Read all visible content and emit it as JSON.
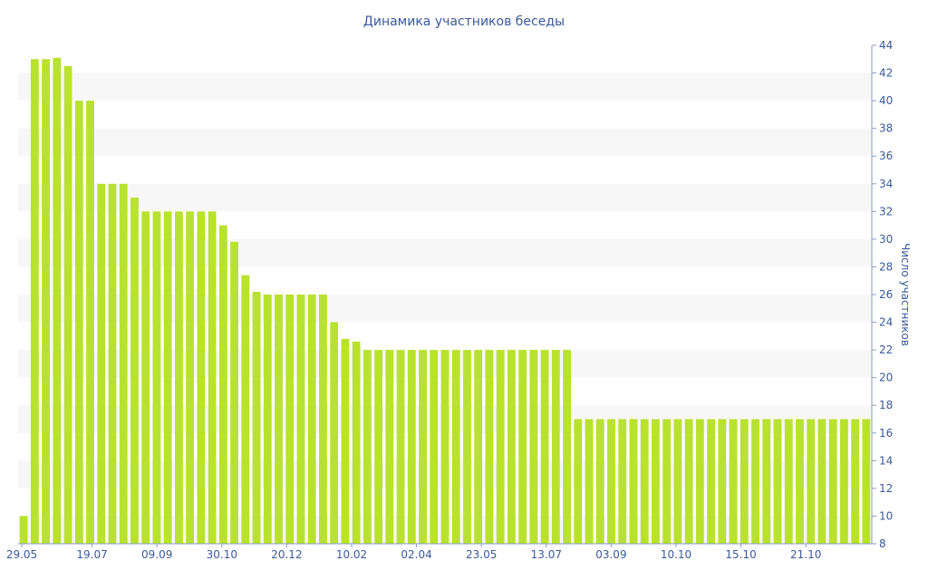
{
  "chart_data": {
    "type": "bar",
    "title": "Динамика участников беседы",
    "xlabel": "",
    "ylabel": "Число участников",
    "ylim": [
      8,
      44
    ],
    "y_axis_position": "right",
    "y_ticks": [
      8,
      10,
      12,
      14,
      16,
      18,
      20,
      22,
      24,
      26,
      28,
      30,
      32,
      34,
      36,
      38,
      40,
      42,
      44
    ],
    "x_tick_labels": [
      "29.05",
      "19.07",
      "09.09",
      "30.10",
      "20.12",
      "10.02",
      "02.04",
      "23.05",
      "13.07",
      "03.09",
      "10.10",
      "15.10",
      "21.10"
    ],
    "grid": "alternating horizontal bands",
    "legend": "none",
    "bar_color": "#b8e22e",
    "band_color": "#f7f7f7",
    "text_color": "#3a5a9a",
    "values": [
      10,
      43,
      43,
      43.1,
      42.5,
      40,
      40,
      34,
      34,
      34,
      33,
      32,
      32,
      32,
      32,
      32,
      32,
      32,
      31,
      29.8,
      27.4,
      26.2,
      26,
      26,
      26,
      26,
      26,
      26,
      24,
      22.8,
      22.6,
      22,
      22,
      22,
      22,
      22,
      22,
      22,
      22,
      22,
      22,
      22,
      22,
      22,
      22,
      22,
      22,
      22,
      22,
      22,
      17,
      17,
      17,
      17,
      17,
      17,
      17,
      17,
      17,
      17,
      17,
      17,
      17,
      17,
      17,
      17,
      17,
      17,
      17,
      17,
      17,
      17,
      17,
      17,
      17,
      17,
      17
    ]
  }
}
